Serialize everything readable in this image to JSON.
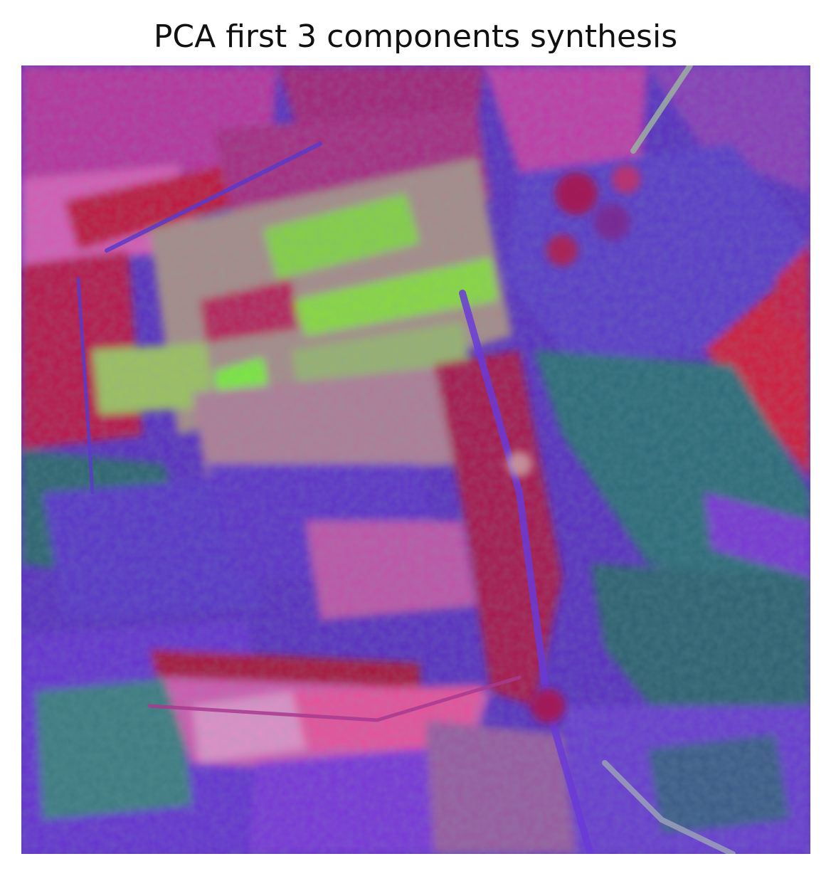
{
  "figure": {
    "title": "PCA first 3 components synthesis"
  },
  "palette": {
    "magenta": "#c0309a",
    "deep_red": "#b01848",
    "bright_red": "#d21c3c",
    "pink": "#e052b8",
    "violet": "#7a2fe0",
    "purple_blue": "#5a2cc8",
    "teal": "#2f6f72",
    "lime": "#7de83a",
    "olive": "#9aa860",
    "mauve": "#b07a98",
    "light_pink": "#e08fc8"
  }
}
